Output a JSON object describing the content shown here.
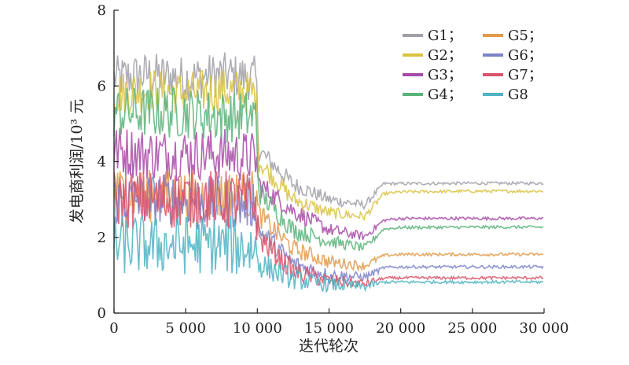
{
  "chart_data": {
    "type": "line",
    "title": "",
    "xlabel": "迭代轮次",
    "ylabel": "发电商利润/10³ 元",
    "xlim": [
      0,
      30000
    ],
    "ylim": [
      0,
      8
    ],
    "x_ticks": [
      0,
      5000,
      10000,
      15000,
      20000,
      25000,
      30000
    ],
    "x_tick_labels": [
      "0",
      "5 000",
      "10 000",
      "15 000",
      "20 000",
      "25 000",
      "30 000"
    ],
    "y_ticks": [
      0,
      2,
      4,
      6,
      8
    ],
    "y_tick_labels": [
      "0",
      "2",
      "4",
      "6",
      "8"
    ],
    "grid": false,
    "legend_position": "top-right",
    "x": [
      0,
      2500,
      5000,
      7500,
      9900,
      10100,
      12500,
      15000,
      17500,
      18800,
      20000,
      25000,
      30000
    ],
    "series": [
      {
        "name": "G1",
        "legend": "G1；",
        "color": "#a0a0a8",
        "noise": 0.6,
        "values": [
          6.2,
          6.3,
          6.2,
          6.3,
          6.2,
          4.3,
          3.4,
          3.0,
          2.85,
          3.42,
          3.42,
          3.43,
          3.43
        ]
      },
      {
        "name": "G2",
        "legend": "G2；",
        "color": "#d9c341",
        "noise": 0.6,
        "values": [
          5.8,
          5.9,
          5.8,
          5.9,
          5.8,
          4.0,
          3.0,
          2.65,
          2.55,
          3.15,
          3.2,
          3.22,
          3.22
        ]
      },
      {
        "name": "G3",
        "legend": "G3；",
        "color": "#a84aa8",
        "noise": 0.7,
        "values": [
          4.3,
          4.2,
          4.2,
          4.2,
          4.1,
          3.4,
          2.7,
          2.2,
          2.02,
          2.45,
          2.5,
          2.5,
          2.5
        ]
      },
      {
        "name": "G4",
        "legend": "G4；",
        "color": "#5ab37a",
        "noise": 0.7,
        "values": [
          5.3,
          5.3,
          5.3,
          5.2,
          5.2,
          3.2,
          2.2,
          1.9,
          1.72,
          2.22,
          2.26,
          2.27,
          2.27
        ]
      },
      {
        "name": "G5",
        "legend": "G5；",
        "color": "#e29a4a",
        "noise": 0.7,
        "values": [
          3.2,
          3.1,
          3.1,
          3.1,
          3.1,
          2.6,
          1.7,
          1.35,
          1.25,
          1.52,
          1.55,
          1.55,
          1.55
        ]
      },
      {
        "name": "G6",
        "legend": "G6；",
        "color": "#7b82c9",
        "noise": 0.7,
        "values": [
          3.0,
          3.0,
          3.0,
          2.9,
          2.9,
          2.2,
          1.3,
          1.0,
          0.95,
          1.2,
          1.22,
          1.22,
          1.22
        ]
      },
      {
        "name": "G7",
        "legend": "G7；",
        "color": "#d9536b",
        "noise": 0.8,
        "values": [
          3.0,
          3.0,
          3.0,
          3.0,
          2.9,
          2.0,
          1.1,
          0.85,
          0.78,
          0.92,
          0.93,
          0.93,
          0.93
        ]
      },
      {
        "name": "G8",
        "legend": "G8",
        "color": "#4fb3c3",
        "noise": 0.8,
        "values": [
          1.8,
          1.8,
          1.8,
          1.8,
          1.7,
          1.3,
          0.9,
          0.75,
          0.7,
          0.82,
          0.82,
          0.82,
          0.82
        ]
      }
    ]
  }
}
